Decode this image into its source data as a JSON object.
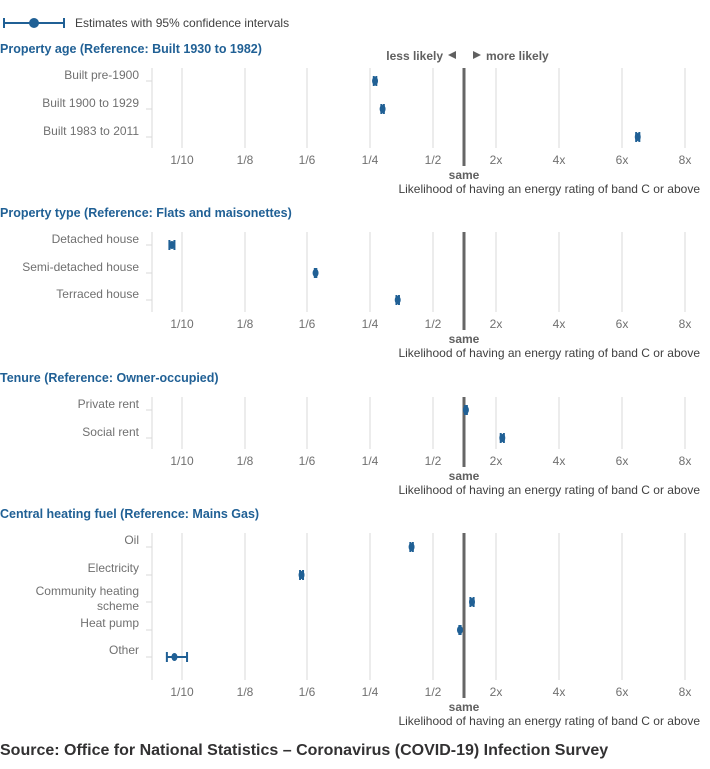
{
  "legend": {
    "label": "Estimates with 95% confidence intervals"
  },
  "direction": {
    "less": "less likely",
    "more": "more likely"
  },
  "source": "Source: Office for National Statistics – Coronavirus (COVID-19) Infection Survey",
  "colors": {
    "point": "#206095",
    "title": "#206095",
    "reference_line": "#666666",
    "grid": "#d9d9d9"
  },
  "chart_data": {
    "type": "forest",
    "xlabel": "Likelihood of having an energy rating of band C or above",
    "reference_label": "same",
    "reference_value": 1,
    "ticks": [
      {
        "label": "1/10",
        "value": 0.1
      },
      {
        "label": "1/8",
        "value": 0.125
      },
      {
        "label": "1/6",
        "value": 0.1667
      },
      {
        "label": "1/4",
        "value": 0.25
      },
      {
        "label": "1/2",
        "value": 0.5
      },
      {
        "label": "2x",
        "value": 2
      },
      {
        "label": "4x",
        "value": 4
      },
      {
        "label": "6x",
        "value": 6
      },
      {
        "label": "8x",
        "value": 8
      }
    ],
    "panels": [
      {
        "title": "Property age (Reference: Built 1930 to 1982)",
        "rows": [
          {
            "label": "Built pre-1900",
            "value": 0.27,
            "lo": 0.265,
            "hi": 0.275
          },
          {
            "label": "Built 1900 to 1929",
            "value": 0.3,
            "lo": 0.295,
            "hi": 0.305
          },
          {
            "label": "Built 1983 to 2011",
            "value": 6.5,
            "lo": 6.45,
            "hi": 6.55
          }
        ]
      },
      {
        "title": "Property type (Reference: Flats and maisonettes)",
        "rows": [
          {
            "label": "Detached house",
            "value": 0.096,
            "lo": 0.095,
            "hi": 0.097
          },
          {
            "label": "Semi-detached house",
            "value": 0.178,
            "lo": 0.177,
            "hi": 0.179
          },
          {
            "label": "Terraced house",
            "value": 0.36,
            "lo": 0.355,
            "hi": 0.365
          }
        ]
      },
      {
        "title": "Tenure (Reference: Owner-occupied)",
        "rows": [
          {
            "label": "Private rent",
            "value": 1.06,
            "lo": 1.03,
            "hi": 1.09
          },
          {
            "label": "Social rent",
            "value": 2.2,
            "lo": 2.15,
            "hi": 2.25
          }
        ]
      },
      {
        "title": "Central heating fuel (Reference: Mains Gas)",
        "rows": [
          {
            "label": [
              "Oil"
            ],
            "value": 0.415,
            "lo": 0.41,
            "hi": 0.42
          },
          {
            "label": [
              "Electricity"
            ],
            "value": 0.163,
            "lo": 0.162,
            "hi": 0.164
          },
          {
            "label": [
              "Community heating",
              "scheme"
            ],
            "value": 1.25,
            "lo": 1.2,
            "hi": 1.3
          },
          {
            "label": [
              "Heat pump"
            ],
            "value": 0.935,
            "lo": 0.925,
            "hi": 0.945
          },
          {
            "label": [
              "Other"
            ],
            "value": 0.097,
            "lo": 0.094,
            "hi": 0.102
          }
        ]
      }
    ]
  }
}
